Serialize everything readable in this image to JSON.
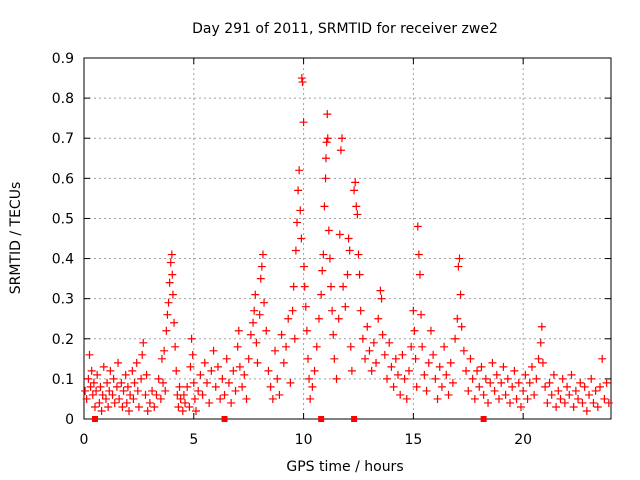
{
  "chart_data": {
    "type": "scatter",
    "title": "Day 291 of 2011, SRMTID for receiver zwe2",
    "xlabel": "GPS time / hours",
    "ylabel": "SRMTID / TECUs",
    "xlim": [
      0,
      24
    ],
    "ylim": [
      0,
      0.9
    ],
    "xticks": [
      0,
      5,
      10,
      15,
      20
    ],
    "yticks": [
      0,
      0.1,
      0.2,
      0.3,
      0.4,
      0.5,
      0.6,
      0.7,
      0.8,
      0.9
    ],
    "grid": true,
    "legend": "none",
    "marker": "+",
    "color": "#ff0000",
    "points": [
      [
        0.05,
        0.07
      ],
      [
        0.12,
        0.05
      ],
      [
        0.2,
        0.1
      ],
      [
        0.25,
        0.16
      ],
      [
        0.3,
        0.08
      ],
      [
        0.35,
        0.12
      ],
      [
        0.4,
        0.06
      ],
      [
        0.45,
        0.09
      ],
      [
        0.5,
        0.03
      ],
      [
        0.55,
        0.07
      ],
      [
        0.6,
        0.11
      ],
      [
        0.7,
        0.04
      ],
      [
        0.75,
        0.08
      ],
      [
        0.8,
        0.02
      ],
      [
        0.85,
        0.06
      ],
      [
        0.9,
        0.13
      ],
      [
        1.0,
        0.05
      ],
      [
        1.05,
        0.09
      ],
      [
        1.1,
        0.03
      ],
      [
        1.15,
        0.07
      ],
      [
        1.2,
        0.12
      ],
      [
        1.3,
        0.06
      ],
      [
        1.35,
        0.1
      ],
      [
        1.4,
        0.04
      ],
      [
        1.5,
        0.08
      ],
      [
        1.55,
        0.14
      ],
      [
        1.6,
        0.05
      ],
      [
        1.7,
        0.09
      ],
      [
        1.75,
        0.03
      ],
      [
        1.8,
        0.07
      ],
      [
        1.9,
        0.11
      ],
      [
        1.95,
        0.04
      ],
      [
        2.0,
        0.08
      ],
      [
        2.05,
        0.02
      ],
      [
        2.1,
        0.06
      ],
      [
        2.2,
        0.12
      ],
      [
        2.25,
        0.05
      ],
      [
        2.3,
        0.09
      ],
      [
        2.4,
        0.14
      ],
      [
        2.45,
        0.07
      ],
      [
        2.5,
        0.03
      ],
      [
        2.6,
        0.1
      ],
      [
        2.65,
        0.16
      ],
      [
        2.7,
        0.19
      ],
      [
        2.8,
        0.06
      ],
      [
        2.85,
        0.11
      ],
      [
        2.9,
        0.02
      ],
      [
        3.0,
        0.04
      ],
      [
        3.1,
        0.07
      ],
      [
        3.2,
        0.03
      ],
      [
        3.3,
        0.06
      ],
      [
        3.4,
        0.1
      ],
      [
        3.5,
        0.05
      ],
      [
        3.55,
        0.15
      ],
      [
        3.6,
        0.09
      ],
      [
        3.65,
        0.17
      ],
      [
        3.7,
        0.07
      ],
      [
        3.75,
        0.22
      ],
      [
        3.8,
        0.26
      ],
      [
        3.85,
        0.29
      ],
      [
        3.9,
        0.34
      ],
      [
        3.95,
        0.39
      ],
      [
        4.0,
        0.41
      ],
      [
        4.02,
        0.36
      ],
      [
        4.05,
        0.31
      ],
      [
        4.1,
        0.24
      ],
      [
        4.15,
        0.18
      ],
      [
        4.2,
        0.12
      ],
      [
        4.25,
        0.06
      ],
      [
        4.3,
        0.03
      ],
      [
        4.35,
        0.08
      ],
      [
        4.4,
        0.05
      ],
      [
        4.5,
        0.02
      ],
      [
        4.55,
        0.06
      ],
      [
        4.6,
        0.04
      ],
      [
        4.7,
        0.08
      ],
      [
        4.8,
        0.03
      ],
      [
        4.85,
        0.13
      ],
      [
        4.9,
        0.2
      ],
      [
        4.95,
        0.16
      ],
      [
        5.0,
        0.09
      ],
      [
        5.05,
        0.05
      ],
      [
        5.1,
        0.02
      ],
      [
        5.2,
        0.07
      ],
      [
        5.3,
        0.11
      ],
      [
        5.4,
        0.06
      ],
      [
        5.5,
        0.14
      ],
      [
        5.6,
        0.09
      ],
      [
        5.7,
        0.04
      ],
      [
        5.8,
        0.12
      ],
      [
        5.9,
        0.17
      ],
      [
        6.0,
        0.08
      ],
      [
        6.1,
        0.13
      ],
      [
        6.2,
        0.05
      ],
      [
        6.3,
        0.1
      ],
      [
        6.4,
        0.06
      ],
      [
        6.5,
        0.15
      ],
      [
        6.6,
        0.09
      ],
      [
        6.7,
        0.04
      ],
      [
        6.8,
        0.12
      ],
      [
        6.9,
        0.07
      ],
      [
        7.0,
        0.18
      ],
      [
        7.05,
        0.22
      ],
      [
        7.1,
        0.13
      ],
      [
        7.2,
        0.08
      ],
      [
        7.3,
        0.11
      ],
      [
        7.4,
        0.05
      ],
      [
        7.5,
        0.15
      ],
      [
        7.6,
        0.21
      ],
      [
        7.7,
        0.24
      ],
      [
        7.75,
        0.27
      ],
      [
        7.8,
        0.31
      ],
      [
        7.85,
        0.19
      ],
      [
        7.9,
        0.14
      ],
      [
        8.0,
        0.26
      ],
      [
        8.05,
        0.35
      ],
      [
        8.1,
        0.38
      ],
      [
        8.15,
        0.41
      ],
      [
        8.2,
        0.29
      ],
      [
        8.3,
        0.22
      ],
      [
        8.4,
        0.12
      ],
      [
        8.5,
        0.08
      ],
      [
        8.6,
        0.05
      ],
      [
        8.7,
        0.17
      ],
      [
        8.8,
        0.1
      ],
      [
        8.9,
        0.06
      ],
      [
        9.0,
        0.21
      ],
      [
        9.1,
        0.14
      ],
      [
        9.2,
        0.18
      ],
      [
        9.3,
        0.25
      ],
      [
        9.4,
        0.09
      ],
      [
        9.5,
        0.27
      ],
      [
        9.55,
        0.33
      ],
      [
        9.6,
        0.2
      ],
      [
        9.65,
        0.42
      ],
      [
        9.7,
        0.49
      ],
      [
        9.75,
        0.57
      ],
      [
        9.8,
        0.62
      ],
      [
        9.85,
        0.52
      ],
      [
        9.9,
        0.45
      ],
      [
        9.92,
        0.85
      ],
      [
        9.95,
        0.84
      ],
      [
        10.0,
        0.74
      ],
      [
        10.02,
        0.38
      ],
      [
        10.05,
        0.33
      ],
      [
        10.1,
        0.28
      ],
      [
        10.15,
        0.22
      ],
      [
        10.2,
        0.15
      ],
      [
        10.25,
        0.1
      ],
      [
        10.3,
        0.05
      ],
      [
        10.4,
        0.08
      ],
      [
        10.5,
        0.12
      ],
      [
        10.6,
        0.18
      ],
      [
        10.7,
        0.25
      ],
      [
        10.8,
        0.31
      ],
      [
        10.85,
        0.37
      ],
      [
        10.9,
        0.41
      ],
      [
        10.95,
        0.53
      ],
      [
        11.0,
        0.6
      ],
      [
        11.02,
        0.65
      ],
      [
        11.05,
        0.69
      ],
      [
        11.08,
        0.76
      ],
      [
        11.1,
        0.7
      ],
      [
        11.15,
        0.47
      ],
      [
        11.2,
        0.4
      ],
      [
        11.25,
        0.33
      ],
      [
        11.3,
        0.27
      ],
      [
        11.35,
        0.21
      ],
      [
        11.4,
        0.15
      ],
      [
        11.5,
        0.1
      ],
      [
        11.6,
        0.25
      ],
      [
        11.65,
        0.46
      ],
      [
        11.7,
        0.67
      ],
      [
        11.75,
        0.7
      ],
      [
        11.8,
        0.33
      ],
      [
        11.9,
        0.28
      ],
      [
        12.0,
        0.36
      ],
      [
        12.05,
        0.45
      ],
      [
        12.1,
        0.42
      ],
      [
        12.15,
        0.18
      ],
      [
        12.2,
        0.12
      ],
      [
        12.3,
        0.57
      ],
      [
        12.35,
        0.59
      ],
      [
        12.4,
        0.53
      ],
      [
        12.45,
        0.51
      ],
      [
        12.5,
        0.41
      ],
      [
        12.55,
        0.36
      ],
      [
        12.6,
        0.27
      ],
      [
        12.7,
        0.2
      ],
      [
        12.8,
        0.15
      ],
      [
        12.9,
        0.23
      ],
      [
        13.0,
        0.17
      ],
      [
        13.1,
        0.12
      ],
      [
        13.2,
        0.19
      ],
      [
        13.3,
        0.14
      ],
      [
        13.4,
        0.25
      ],
      [
        13.5,
        0.32
      ],
      [
        13.55,
        0.3
      ],
      [
        13.6,
        0.21
      ],
      [
        13.7,
        0.16
      ],
      [
        13.8,
        0.1
      ],
      [
        13.9,
        0.19
      ],
      [
        14.0,
        0.13
      ],
      [
        14.1,
        0.08
      ],
      [
        14.2,
        0.15
      ],
      [
        14.3,
        0.11
      ],
      [
        14.4,
        0.06
      ],
      [
        14.5,
        0.16
      ],
      [
        14.6,
        0.1
      ],
      [
        14.7,
        0.05
      ],
      [
        14.8,
        0.12
      ],
      [
        14.9,
        0.18
      ],
      [
        15.0,
        0.27
      ],
      [
        15.05,
        0.22
      ],
      [
        15.1,
        0.15
      ],
      [
        15.15,
        0.08
      ],
      [
        15.2,
        0.48
      ],
      [
        15.25,
        0.41
      ],
      [
        15.3,
        0.36
      ],
      [
        15.35,
        0.26
      ],
      [
        15.4,
        0.18
      ],
      [
        15.5,
        0.11
      ],
      [
        15.6,
        0.07
      ],
      [
        15.7,
        0.14
      ],
      [
        15.8,
        0.22
      ],
      [
        15.9,
        0.16
      ],
      [
        16.0,
        0.1
      ],
      [
        16.1,
        0.05
      ],
      [
        16.2,
        0.13
      ],
      [
        16.3,
        0.08
      ],
      [
        16.4,
        0.18
      ],
      [
        16.5,
        0.11
      ],
      [
        16.6,
        0.06
      ],
      [
        16.7,
        0.14
      ],
      [
        16.8,
        0.09
      ],
      [
        16.9,
        0.2
      ],
      [
        17.0,
        0.25
      ],
      [
        17.05,
        0.38
      ],
      [
        17.1,
        0.4
      ],
      [
        17.15,
        0.31
      ],
      [
        17.2,
        0.23
      ],
      [
        17.3,
        0.17
      ],
      [
        17.4,
        0.12
      ],
      [
        17.5,
        0.07
      ],
      [
        17.6,
        0.15
      ],
      [
        17.7,
        0.1
      ],
      [
        17.8,
        0.05
      ],
      [
        17.9,
        0.12
      ],
      [
        18.0,
        0.08
      ],
      [
        18.1,
        0.13
      ],
      [
        18.2,
        0.06
      ],
      [
        18.3,
        0.1
      ],
      [
        18.4,
        0.04
      ],
      [
        18.5,
        0.09
      ],
      [
        18.6,
        0.14
      ],
      [
        18.7,
        0.07
      ],
      [
        18.8,
        0.11
      ],
      [
        18.9,
        0.05
      ],
      [
        19.0,
        0.09
      ],
      [
        19.1,
        0.13
      ],
      [
        19.2,
        0.06
      ],
      [
        19.3,
        0.1
      ],
      [
        19.4,
        0.04
      ],
      [
        19.5,
        0.08
      ],
      [
        19.6,
        0.12
      ],
      [
        19.7,
        0.05
      ],
      [
        19.8,
        0.09
      ],
      [
        19.9,
        0.03
      ],
      [
        20.0,
        0.07
      ],
      [
        20.1,
        0.11
      ],
      [
        20.2,
        0.05
      ],
      [
        20.3,
        0.09
      ],
      [
        20.4,
        0.13
      ],
      [
        20.5,
        0.06
      ],
      [
        20.6,
        0.1
      ],
      [
        20.7,
        0.15
      ],
      [
        20.8,
        0.19
      ],
      [
        20.85,
        0.23
      ],
      [
        20.9,
        0.14
      ],
      [
        21.0,
        0.08
      ],
      [
        21.1,
        0.04
      ],
      [
        21.2,
        0.09
      ],
      [
        21.3,
        0.06
      ],
      [
        21.4,
        0.11
      ],
      [
        21.5,
        0.03
      ],
      [
        21.6,
        0.07
      ],
      [
        21.7,
        0.05
      ],
      [
        21.8,
        0.1
      ],
      [
        21.9,
        0.04
      ],
      [
        22.0,
        0.08
      ],
      [
        22.1,
        0.06
      ],
      [
        22.2,
        0.11
      ],
      [
        22.3,
        0.03
      ],
      [
        22.4,
        0.07
      ],
      [
        22.5,
        0.05
      ],
      [
        22.6,
        0.09
      ],
      [
        22.7,
        0.04
      ],
      [
        22.8,
        0.08
      ],
      [
        22.9,
        0.02
      ],
      [
        23.0,
        0.06
      ],
      [
        23.1,
        0.1
      ],
      [
        23.2,
        0.04
      ],
      [
        23.3,
        0.07
      ],
      [
        23.4,
        0.03
      ],
      [
        23.5,
        0.08
      ],
      [
        23.6,
        0.15
      ],
      [
        23.7,
        0.05
      ],
      [
        23.8,
        0.09
      ],
      [
        23.9,
        0.04
      ]
    ],
    "zero_markers": [
      0.5,
      6.4,
      10.8,
      12.3,
      18.2
    ]
  }
}
